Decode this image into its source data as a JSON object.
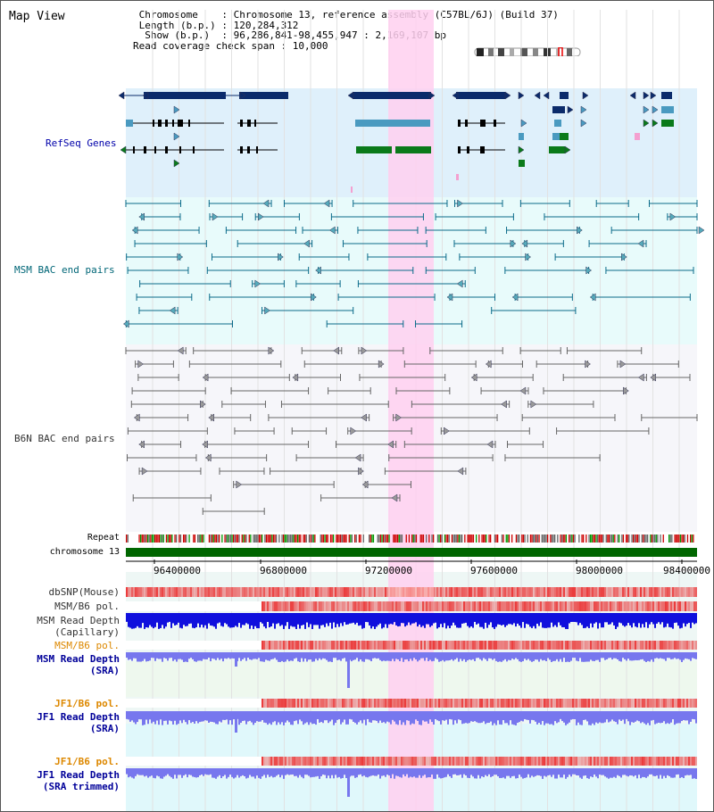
{
  "title": "Map View",
  "header": {
    "lines": [
      " Chromosome    : Chromosome 13, reference assembly (C57BL/6J) (Build 37)",
      " Length (b.p.) : 120,284,312",
      "  Show (b.p.)  : 96,286,841-98,455,947 : 2,169,107 bp",
      "Read coverage check span : 10,000"
    ]
  },
  "tracks": {
    "refseq": "RefSeq Genes",
    "msm_bac": "MSM BAC end pairs",
    "b6n_bac": "B6N BAC end pairs",
    "repeat": "Repeat",
    "chromosome": "chromosome 13",
    "dbsnp": "dbSNP(Mouse)",
    "msm_b6_pol_1": "MSM/B6 pol.",
    "msm_depth_cap_1": "MSM Read Depth",
    "msm_depth_cap_2": "(Capillary)",
    "msm_b6_pol_2": "MSM/B6 pol.",
    "msm_depth_sra_1": "MSM Read Depth",
    "msm_depth_sra_2": "(SRA)",
    "jf1_b6_pol_1": "JF1/B6 pol.",
    "jf1_depth_sra_1": "JF1 Read Depth",
    "jf1_depth_sra_2": "(SRA)",
    "jf1_b6_pol_2": "JF1/B6 pol.",
    "jf1_depth_trim_1": "JF1 Read Depth",
    "jf1_depth_trim_2": "(SRA trimmed)"
  },
  "axis": {
    "ticks": [
      "96400000",
      "96800000",
      "97200000",
      "97600000",
      "98000000",
      "98400000"
    ]
  },
  "colors": {
    "refseq_label": "#0000aa",
    "msm_label": "#006677",
    "b6n_label": "#333333",
    "pol_label": "#dd8800",
    "depth_label": "#000099",
    "highlight": "#ffd0f0",
    "chromosome_bar": "#006600",
    "depth_blue": "#1010dd",
    "sra_blue": "#7777ee"
  }
}
